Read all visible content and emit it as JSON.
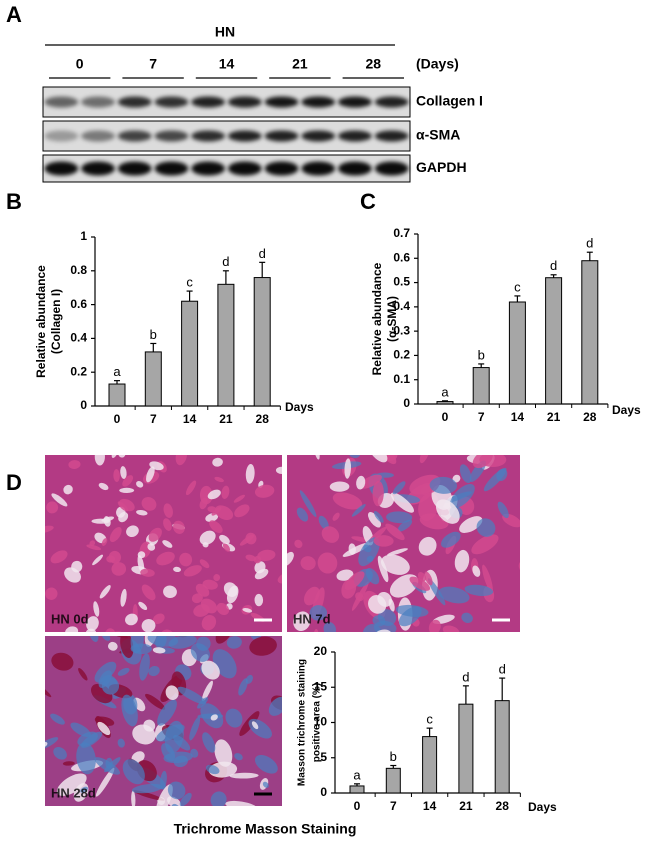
{
  "panel_labels": [
    "A",
    "B",
    "C",
    "D"
  ],
  "blot": {
    "group": "HN",
    "days": [
      "0",
      "7",
      "14",
      "21",
      "28"
    ],
    "days_label": "(Days)",
    "rows": [
      "Collagen I",
      "α-SMA",
      "GAPDH"
    ]
  },
  "image_labels": [
    "HN 0d",
    "HN 7d",
    "HN 28d"
  ],
  "caption": "Trichrome Masson Staining",
  "chart_data": [
    {
      "type": "bar",
      "ylabel": [
        "Relative abundance",
        "(Collagen I)"
      ],
      "xlabel": "Days",
      "categories": [
        "0",
        "7",
        "14",
        "21",
        "28"
      ],
      "values": [
        0.13,
        0.32,
        0.62,
        0.72,
        0.76
      ],
      "errors": [
        0.02,
        0.05,
        0.06,
        0.08,
        0.09
      ],
      "annotations": [
        "a",
        "b",
        "c",
        "d",
        "d"
      ],
      "color": "#a6a6a6",
      "ylim": [
        0,
        1
      ],
      "yticks": [
        0,
        0.2,
        0.4,
        0.6,
        0.8,
        1
      ]
    },
    {
      "type": "bar",
      "ylabel": [
        "Relative abundance",
        "(α-SMA)"
      ],
      "xlabel": "Days",
      "categories": [
        "0",
        "7",
        "14",
        "21",
        "28"
      ],
      "values": [
        0.01,
        0.15,
        0.42,
        0.52,
        0.59
      ],
      "errors": [
        0.003,
        0.015,
        0.025,
        0.012,
        0.035
      ],
      "annotations": [
        "a",
        "b",
        "c",
        "d",
        "d"
      ],
      "color": "#a6a6a6",
      "ylim": [
        0,
        0.7
      ],
      "yticks": [
        0,
        0.1,
        0.2,
        0.3,
        0.4,
        0.5,
        0.6,
        0.7
      ]
    },
    {
      "type": "bar",
      "ylabel": [
        "Masson trichrome staining",
        "positive area (%)"
      ],
      "xlabel": "Days",
      "categories": [
        "0",
        "7",
        "14",
        "21",
        "28"
      ],
      "values": [
        1.0,
        3.5,
        8.0,
        12.6,
        13.1
      ],
      "errors": [
        0.3,
        0.4,
        1.2,
        2.6,
        3.2
      ],
      "annotations": [
        "a",
        "b",
        "c",
        "d",
        "d"
      ],
      "color": "#a6a6a6",
      "ylim": [
        0,
        20
      ],
      "yticks": [
        0,
        5,
        10,
        15,
        20
      ]
    }
  ]
}
